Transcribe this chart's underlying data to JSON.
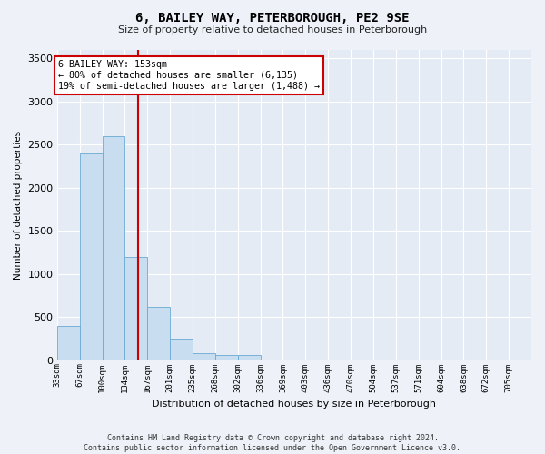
{
  "title": "6, BAILEY WAY, PETERBOROUGH, PE2 9SE",
  "subtitle": "Size of property relative to detached houses in Peterborough",
  "xlabel": "Distribution of detached houses by size in Peterborough",
  "ylabel": "Number of detached properties",
  "footer_line1": "Contains HM Land Registry data © Crown copyright and database right 2024.",
  "footer_line2": "Contains public sector information licensed under the Open Government Licence v3.0.",
  "bar_color": "#c9ddf0",
  "bar_edge_color": "#6aaad4",
  "annotation_text": "6 BAILEY WAY: 153sqm\n← 80% of detached houses are smaller (6,135)\n19% of semi-detached houses are larger (1,488) →",
  "annotation_box_color": "#ffffff",
  "annotation_box_edge": "#cc0000",
  "vline_color": "#cc0000",
  "vline_x": 3,
  "categories": [
    "33sqm",
    "67sqm",
    "100sqm",
    "134sqm",
    "167sqm",
    "201sqm",
    "235sqm",
    "268sqm",
    "302sqm",
    "336sqm",
    "369sqm",
    "403sqm",
    "436sqm",
    "470sqm",
    "504sqm",
    "537sqm",
    "571sqm",
    "604sqm",
    "638sqm",
    "672sqm",
    "705sqm"
  ],
  "bar_heights": [
    400,
    2400,
    2600,
    1200,
    620,
    250,
    85,
    60,
    55,
    0,
    0,
    0,
    0,
    0,
    0,
    0,
    0,
    0,
    0,
    0,
    0
  ],
  "ylim": [
    0,
    3600
  ],
  "yticks": [
    0,
    500,
    1000,
    1500,
    2000,
    2500,
    3000,
    3500
  ],
  "background_color": "#eef2f8",
  "plot_bg_color": "#e4ebf5",
  "n_bins": 21,
  "vline_bin": 3.6
}
